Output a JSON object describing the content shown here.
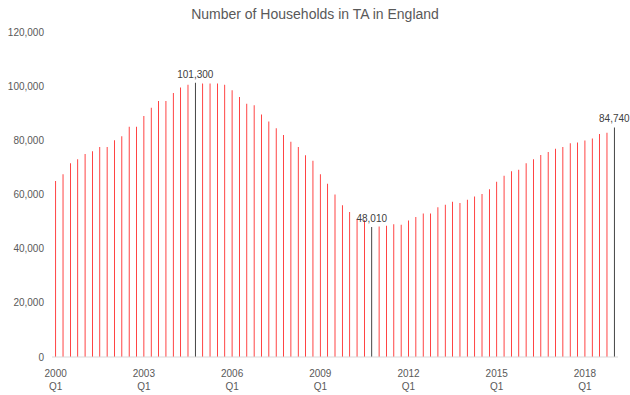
{
  "chart_data": {
    "type": "bar",
    "title": "Number of Households in TA in England",
    "categories": [
      "2000 Q1",
      null,
      null,
      null,
      null,
      null,
      null,
      null,
      null,
      null,
      null,
      null,
      "2003 Q1",
      null,
      null,
      null,
      null,
      null,
      null,
      null,
      null,
      null,
      null,
      null,
      "2006 Q1",
      null,
      null,
      null,
      null,
      null,
      null,
      null,
      null,
      null,
      null,
      null,
      "2009 Q1",
      null,
      null,
      null,
      null,
      null,
      null,
      null,
      null,
      null,
      null,
      null,
      "2012 Q1",
      null,
      null,
      null,
      null,
      null,
      null,
      null,
      null,
      null,
      null,
      null,
      "2015 Q1",
      null,
      null,
      null,
      null,
      null,
      null,
      null,
      null,
      null,
      null,
      null,
      "2018 Q1",
      null,
      null,
      null,
      null
    ],
    "values": [
      65000,
      67500,
      71500,
      73000,
      75000,
      76000,
      77500,
      77500,
      80000,
      81500,
      85000,
      85000,
      89000,
      92000,
      94500,
      94500,
      97500,
      99500,
      100500,
      101300,
      101000,
      101000,
      101000,
      100500,
      98500,
      96000,
      93500,
      93000,
      89500,
      87000,
      84500,
      82000,
      79500,
      77500,
      74500,
      72500,
      67500,
      64000,
      60000,
      56000,
      53500,
      51000,
      50500,
      48010,
      48200,
      48500,
      49000,
      48800,
      50400,
      51700,
      53000,
      53000,
      55300,
      56200,
      57300,
      56900,
      58100,
      59300,
      60200,
      61900,
      64700,
      66900,
      68600,
      69100,
      71500,
      73000,
      74600,
      75700,
      76900,
      77500,
      78900,
      79200,
      79900,
      80700,
      82300,
      82800,
      84740
    ],
    "value_labels": [
      null,
      null,
      null,
      null,
      null,
      null,
      null,
      null,
      null,
      null,
      null,
      null,
      null,
      null,
      null,
      null,
      null,
      null,
      null,
      "101,300",
      null,
      null,
      null,
      null,
      null,
      null,
      null,
      null,
      null,
      null,
      null,
      null,
      null,
      null,
      null,
      null,
      null,
      null,
      null,
      null,
      null,
      null,
      null,
      "48,010",
      null,
      null,
      null,
      null,
      null,
      null,
      null,
      null,
      null,
      null,
      null,
      null,
      null,
      null,
      null,
      null,
      null,
      null,
      null,
      null,
      null,
      null,
      null,
      null,
      null,
      null,
      null,
      null,
      null,
      null,
      null,
      null,
      "84,740"
    ],
    "colors": [
      "#ff0000",
      "#ff0000",
      "#ff0000",
      "#ff0000",
      "#ff0000",
      "#ff0000",
      "#ff0000",
      "#ff0000",
      "#ff0000",
      "#ff0000",
      "#ff0000",
      "#ff0000",
      "#ff0000",
      "#ff0000",
      "#ff0000",
      "#ff0000",
      "#ff0000",
      "#ff0000",
      "#ff0000",
      "#000000",
      "#ff0000",
      "#ff0000",
      "#ff0000",
      "#ff0000",
      "#ff0000",
      "#ff0000",
      "#ff0000",
      "#ff0000",
      "#ff0000",
      "#ff0000",
      "#ff0000",
      "#ff0000",
      "#ff0000",
      "#ff0000",
      "#ff0000",
      "#ff0000",
      "#ff0000",
      "#ff0000",
      "#ff0000",
      "#ff0000",
      "#ff0000",
      "#ff0000",
      "#ff0000",
      "#000000",
      "#ff0000",
      "#ff0000",
      "#ff0000",
      "#ff0000",
      "#ff0000",
      "#ff0000",
      "#ff0000",
      "#ff0000",
      "#ff0000",
      "#ff0000",
      "#ff0000",
      "#ff0000",
      "#ff0000",
      "#ff0000",
      "#ff0000",
      "#ff0000",
      "#ff0000",
      "#ff0000",
      "#ff0000",
      "#ff0000",
      "#ff0000",
      "#ff0000",
      "#ff0000",
      "#ff0000",
      "#ff0000",
      "#ff0000",
      "#ff0000",
      "#ff0000",
      "#ff0000",
      "#ff0000",
      "#ff0000",
      "#ff0000",
      "#000000"
    ],
    "ylim": [
      0,
      120000
    ],
    "yticks": [
      0,
      {
        "value": 20000,
        "label": "20,000"
      },
      {
        "value": 40000,
        "label": "40,000"
      },
      {
        "value": 60000,
        "label": "60,000"
      },
      {
        "value": 80000,
        "label": "80,000"
      },
      {
        "value": 100000,
        "label": "100,000"
      },
      {
        "value": 120000,
        "label": "120,000"
      }
    ],
    "grid": false
  }
}
